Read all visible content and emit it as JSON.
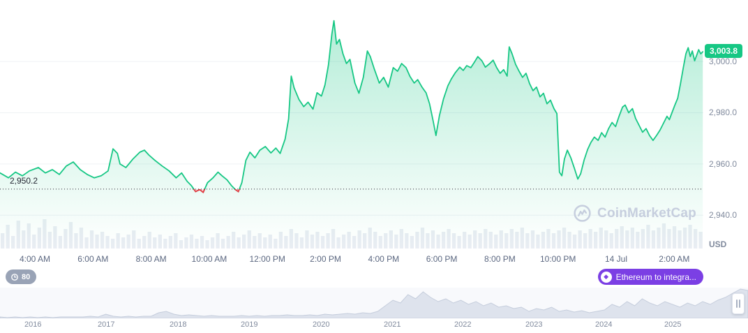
{
  "watermark": {
    "text": "CoinMarketCap"
  },
  "controls": {
    "latency_badge": "80",
    "promo_button": "Ethereum to integra...",
    "promo_icon_glyph": "◆",
    "latency_color": "#99a3b6",
    "promo_color": "#7b3fe4"
  },
  "chart_data": {
    "type": "area",
    "unit": "USD",
    "current_price": {
      "label": "3,003.8",
      "value": 3003.8
    },
    "threshold": {
      "label": "2,950.2",
      "value": 2950.2
    },
    "y_ticks": [
      {
        "label": "3,000.0",
        "value": 3000
      },
      {
        "label": "2,980.0",
        "value": 2980
      },
      {
        "label": "2,960.0",
        "value": 2960
      },
      {
        "label": "2,940.0",
        "value": 2940
      }
    ],
    "x_ticks": [
      {
        "label": "4:00 AM",
        "hour": 4
      },
      {
        "label": "6:00 AM",
        "hour": 6
      },
      {
        "label": "8:00 AM",
        "hour": 8
      },
      {
        "label": "10:00 AM",
        "hour": 10
      },
      {
        "label": "12:00 PM",
        "hour": 12
      },
      {
        "label": "2:00 PM",
        "hour": 14
      },
      {
        "label": "4:00 PM",
        "hour": 16
      },
      {
        "label": "6:00 PM",
        "hour": 18
      },
      {
        "label": "8:00 PM",
        "hour": 20
      },
      {
        "label": "10:00 PM",
        "hour": 22
      },
      {
        "label": "14 Jul",
        "hour": 24
      },
      {
        "label": "2:00 AM",
        "hour": 26
      }
    ],
    "x_domain_hours": [
      2.8,
      27.0
    ],
    "y_domain": [
      2927,
      3024
    ],
    "colors": {
      "line": "#16c784",
      "below_line": "#ea3943",
      "below_fill": "rgba(234,57,67,0.16)",
      "grid": "#eff2f5",
      "volume": "#e9edf3",
      "dotted": "#222531",
      "badge": "#16c784"
    },
    "series": [
      [
        2.8,
        2956.5
      ],
      [
        3.09,
        2954.6
      ],
      [
        3.33,
        2956.8
      ],
      [
        3.57,
        2955.4
      ],
      [
        3.81,
        2957.3
      ],
      [
        4.12,
        2958.6
      ],
      [
        4.36,
        2956.5
      ],
      [
        4.6,
        2957.8
      ],
      [
        4.84,
        2955.9
      ],
      [
        5.08,
        2959.2
      ],
      [
        5.32,
        2960.8
      ],
      [
        5.56,
        2957.8
      ],
      [
        5.8,
        2955.9
      ],
      [
        6.04,
        2954.6
      ],
      [
        6.28,
        2955.4
      ],
      [
        6.52,
        2957.3
      ],
      [
        6.69,
        2965.9
      ],
      [
        6.84,
        2964.1
      ],
      [
        6.93,
        2960.0
      ],
      [
        7.13,
        2958.6
      ],
      [
        7.37,
        2961.9
      ],
      [
        7.61,
        2964.6
      ],
      [
        7.77,
        2965.4
      ],
      [
        7.92,
        2963.5
      ],
      [
        8.13,
        2961.4
      ],
      [
        8.38,
        2959.2
      ],
      [
        8.62,
        2957.3
      ],
      [
        8.86,
        2954.6
      ],
      [
        9.05,
        2956.5
      ],
      [
        9.24,
        2953.2
      ],
      [
        9.38,
        2951.6
      ],
      [
        9.53,
        2949.2
      ],
      [
        9.67,
        2950.0
      ],
      [
        9.79,
        2948.9
      ],
      [
        9.94,
        2952.7
      ],
      [
        10.13,
        2954.6
      ],
      [
        10.3,
        2956.8
      ],
      [
        10.44,
        2955.4
      ],
      [
        10.61,
        2953.8
      ],
      [
        10.76,
        2951.6
      ],
      [
        10.9,
        2950.0
      ],
      [
        11.0,
        2949.2
      ],
      [
        11.12,
        2952.7
      ],
      [
        11.26,
        2961.4
      ],
      [
        11.4,
        2964.6
      ],
      [
        11.57,
        2962.4
      ],
      [
        11.74,
        2965.4
      ],
      [
        11.93,
        2966.8
      ],
      [
        12.12,
        2964.3
      ],
      [
        12.29,
        2966.2
      ],
      [
        12.44,
        2964.1
      ],
      [
        12.61,
        2969.7
      ],
      [
        12.73,
        2977.6
      ],
      [
        12.82,
        2994.3
      ],
      [
        12.92,
        2989.7
      ],
      [
        13.09,
        2985.1
      ],
      [
        13.25,
        2982.4
      ],
      [
        13.4,
        2984.1
      ],
      [
        13.57,
        2981.4
      ],
      [
        13.71,
        2987.8
      ],
      [
        13.86,
        2986.5
      ],
      [
        13.98,
        2990.8
      ],
      [
        14.1,
        2998.6
      ],
      [
        14.22,
        3010.8
      ],
      [
        14.29,
        3015.9
      ],
      [
        14.38,
        3006.8
      ],
      [
        14.48,
        3008.6
      ],
      [
        14.6,
        3003.0
      ],
      [
        14.72,
        2999.2
      ],
      [
        14.84,
        3000.8
      ],
      [
        15.01,
        2991.6
      ],
      [
        15.15,
        2987.6
      ],
      [
        15.3,
        2993.8
      ],
      [
        15.44,
        3004.1
      ],
      [
        15.54,
        3001.9
      ],
      [
        15.68,
        2997.0
      ],
      [
        15.85,
        2991.6
      ],
      [
        16.0,
        2993.8
      ],
      [
        16.16,
        2990.0
      ],
      [
        16.33,
        2997.6
      ],
      [
        16.48,
        2996.2
      ],
      [
        16.62,
        2999.2
      ],
      [
        16.77,
        2997.6
      ],
      [
        16.91,
        2994.1
      ],
      [
        17.05,
        2991.6
      ],
      [
        17.17,
        2992.9
      ],
      [
        17.32,
        2990.0
      ],
      [
        17.46,
        2987.8
      ],
      [
        17.58,
        2983.5
      ],
      [
        17.7,
        2977.0
      ],
      [
        17.8,
        2971.1
      ],
      [
        17.92,
        2978.9
      ],
      [
        18.06,
        2985.4
      ],
      [
        18.21,
        2990.5
      ],
      [
        18.33,
        2993.2
      ],
      [
        18.47,
        2995.7
      ],
      [
        18.62,
        2997.8
      ],
      [
        18.74,
        2996.5
      ],
      [
        18.86,
        2998.4
      ],
      [
        19.0,
        2997.6
      ],
      [
        19.12,
        2999.7
      ],
      [
        19.24,
        3001.9
      ],
      [
        19.38,
        3000.3
      ],
      [
        19.5,
        2997.8
      ],
      [
        19.65,
        2999.2
      ],
      [
        19.77,
        3000.5
      ],
      [
        19.89,
        2997.6
      ],
      [
        20.01,
        2995.4
      ],
      [
        20.13,
        2996.8
      ],
      [
        20.25,
        2994.3
      ],
      [
        20.32,
        3005.7
      ],
      [
        20.42,
        3003.0
      ],
      [
        20.54,
        2998.9
      ],
      [
        20.66,
        2996.2
      ],
      [
        20.78,
        2993.8
      ],
      [
        20.9,
        2995.4
      ],
      [
        21.02,
        2991.4
      ],
      [
        21.14,
        2988.6
      ],
      [
        21.26,
        2990.0
      ],
      [
        21.38,
        2986.2
      ],
      [
        21.5,
        2987.6
      ],
      [
        21.62,
        2983.5
      ],
      [
        21.74,
        2984.9
      ],
      [
        21.86,
        2981.6
      ],
      [
        21.96,
        2979.7
      ],
      [
        22.05,
        2956.8
      ],
      [
        22.13,
        2955.4
      ],
      [
        22.22,
        2961.9
      ],
      [
        22.32,
        2965.4
      ],
      [
        22.44,
        2962.4
      ],
      [
        22.56,
        2958.4
      ],
      [
        22.68,
        2954.1
      ],
      [
        22.78,
        2956.2
      ],
      [
        22.9,
        2961.6
      ],
      [
        23.02,
        2965.7
      ],
      [
        23.13,
        2968.4
      ],
      [
        23.25,
        2970.5
      ],
      [
        23.38,
        2969.2
      ],
      [
        23.5,
        2972.2
      ],
      [
        23.62,
        2970.5
      ],
      [
        23.74,
        2973.8
      ],
      [
        23.86,
        2976.2
      ],
      [
        23.98,
        2974.6
      ],
      [
        24.1,
        2978.6
      ],
      [
        24.22,
        2982.2
      ],
      [
        24.31,
        2983.0
      ],
      [
        24.43,
        2980.0
      ],
      [
        24.56,
        2981.6
      ],
      [
        24.67,
        2977.8
      ],
      [
        24.79,
        2975.1
      ],
      [
        24.91,
        2972.4
      ],
      [
        25.03,
        2973.8
      ],
      [
        25.15,
        2971.1
      ],
      [
        25.27,
        2969.2
      ],
      [
        25.39,
        2971.1
      ],
      [
        25.51,
        2973.2
      ],
      [
        25.63,
        2975.9
      ],
      [
        25.75,
        2978.6
      ],
      [
        25.83,
        2977.3
      ],
      [
        25.92,
        2980.0
      ],
      [
        26.02,
        2983.0
      ],
      [
        26.12,
        2985.7
      ],
      [
        26.21,
        2991.1
      ],
      [
        26.31,
        2997.6
      ],
      [
        26.4,
        3003.0
      ],
      [
        26.48,
        3005.4
      ],
      [
        26.55,
        3001.9
      ],
      [
        26.62,
        3004.1
      ],
      [
        26.7,
        3000.3
      ],
      [
        26.77,
        3002.4
      ],
      [
        26.84,
        3004.6
      ],
      [
        26.91,
        3003.0
      ],
      [
        26.98,
        3003.8
      ]
    ],
    "volume_bars": [
      22,
      34,
      18,
      40,
      26,
      36,
      20,
      30,
      42,
      24,
      32,
      18,
      28,
      38,
      22,
      30,
      16,
      26,
      20,
      24,
      18,
      14,
      22,
      16,
      20,
      26,
      14,
      18,
      24,
      16,
      20,
      14,
      18,
      22,
      12,
      16,
      20,
      14,
      18,
      12,
      16,
      22,
      14,
      18,
      24,
      16,
      20,
      26,
      18,
      22,
      16,
      20,
      14,
      24,
      18,
      28,
      22,
      16,
      26,
      20,
      24,
      18,
      22,
      28,
      16,
      20,
      24,
      18,
      26,
      22,
      30,
      24,
      18,
      22,
      26,
      20,
      28,
      22,
      18,
      24,
      30,
      22,
      26,
      20,
      24,
      28,
      22,
      18,
      24,
      20,
      26,
      22,
      28,
      24,
      20,
      26,
      22,
      28,
      24,
      30,
      22,
      26,
      20,
      24,
      28,
      22,
      26,
      30,
      24,
      20,
      26,
      22,
      28,
      24,
      30,
      26,
      22,
      28,
      32,
      26,
      30,
      24,
      28,
      34,
      26,
      30,
      36,
      28,
      32,
      26,
      30,
      34,
      28,
      24
    ]
  },
  "history_chart": {
    "type": "area",
    "years": [
      "2016",
      "2017",
      "2018",
      "2019",
      "2020",
      "2021",
      "2022",
      "2023",
      "2024",
      "2025"
    ],
    "year_x": [
      35,
      140,
      243,
      345,
      448,
      550,
      651,
      753,
      853,
      952
    ],
    "values": [
      2,
      1,
      2,
      1,
      2,
      1,
      2,
      1,
      2,
      2,
      2,
      2,
      3,
      2,
      6,
      3,
      2,
      3,
      2,
      3,
      3,
      8,
      10,
      6,
      4,
      5,
      4,
      3,
      4,
      3,
      3,
      3,
      4,
      3,
      4,
      3,
      4,
      4,
      5,
      4,
      4,
      5,
      4,
      6,
      5,
      6,
      7,
      6,
      8,
      7,
      10,
      18,
      26,
      22,
      34,
      28,
      38,
      30,
      24,
      28,
      22,
      26,
      20,
      24,
      18,
      22,
      16,
      18,
      14,
      16,
      10,
      14,
      12,
      16,
      10,
      12,
      9,
      11,
      8,
      10,
      12,
      20,
      16,
      24,
      18,
      28,
      22,
      18,
      24,
      20,
      16,
      22,
      18,
      24,
      20,
      26,
      30,
      36,
      42,
      40
    ]
  }
}
